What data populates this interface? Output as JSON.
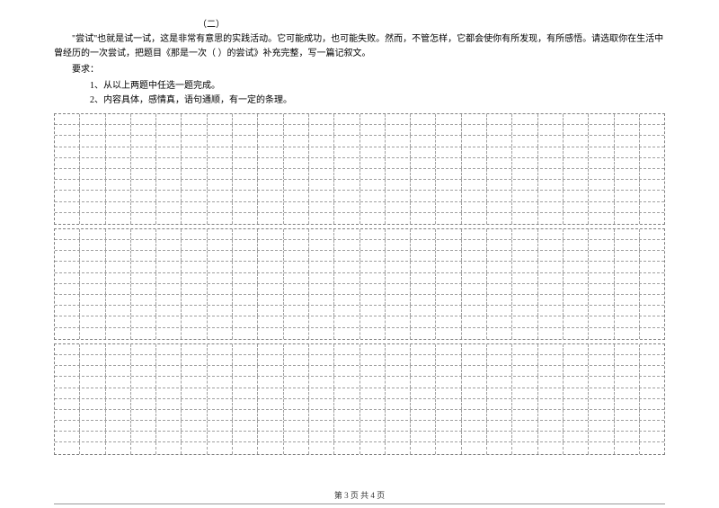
{
  "section_number": "（二）",
  "paragraph1": "\"尝试\"也就是试一试，这是非常有意思的实践活动。它可能成功，也可能失败。然而，不管怎样，它都会使你有所发现，有所感悟。请选取你在生活中曾经历的一次尝试，把题目《那是一次（ ）的尝试》补充完整，写一篇记叙文。",
  "requirement_label": "要求：",
  "requirement_1": "1、从以上两题中任选一题完成。",
  "requirement_2": "2、内容具体，感情真，语句通顺，有一定的条理。",
  "grid": {
    "cols": 24,
    "blocks": [
      10,
      10,
      10
    ],
    "border_color": "#a0a0a0"
  },
  "footer_text": "第 3 页  共 4 页"
}
